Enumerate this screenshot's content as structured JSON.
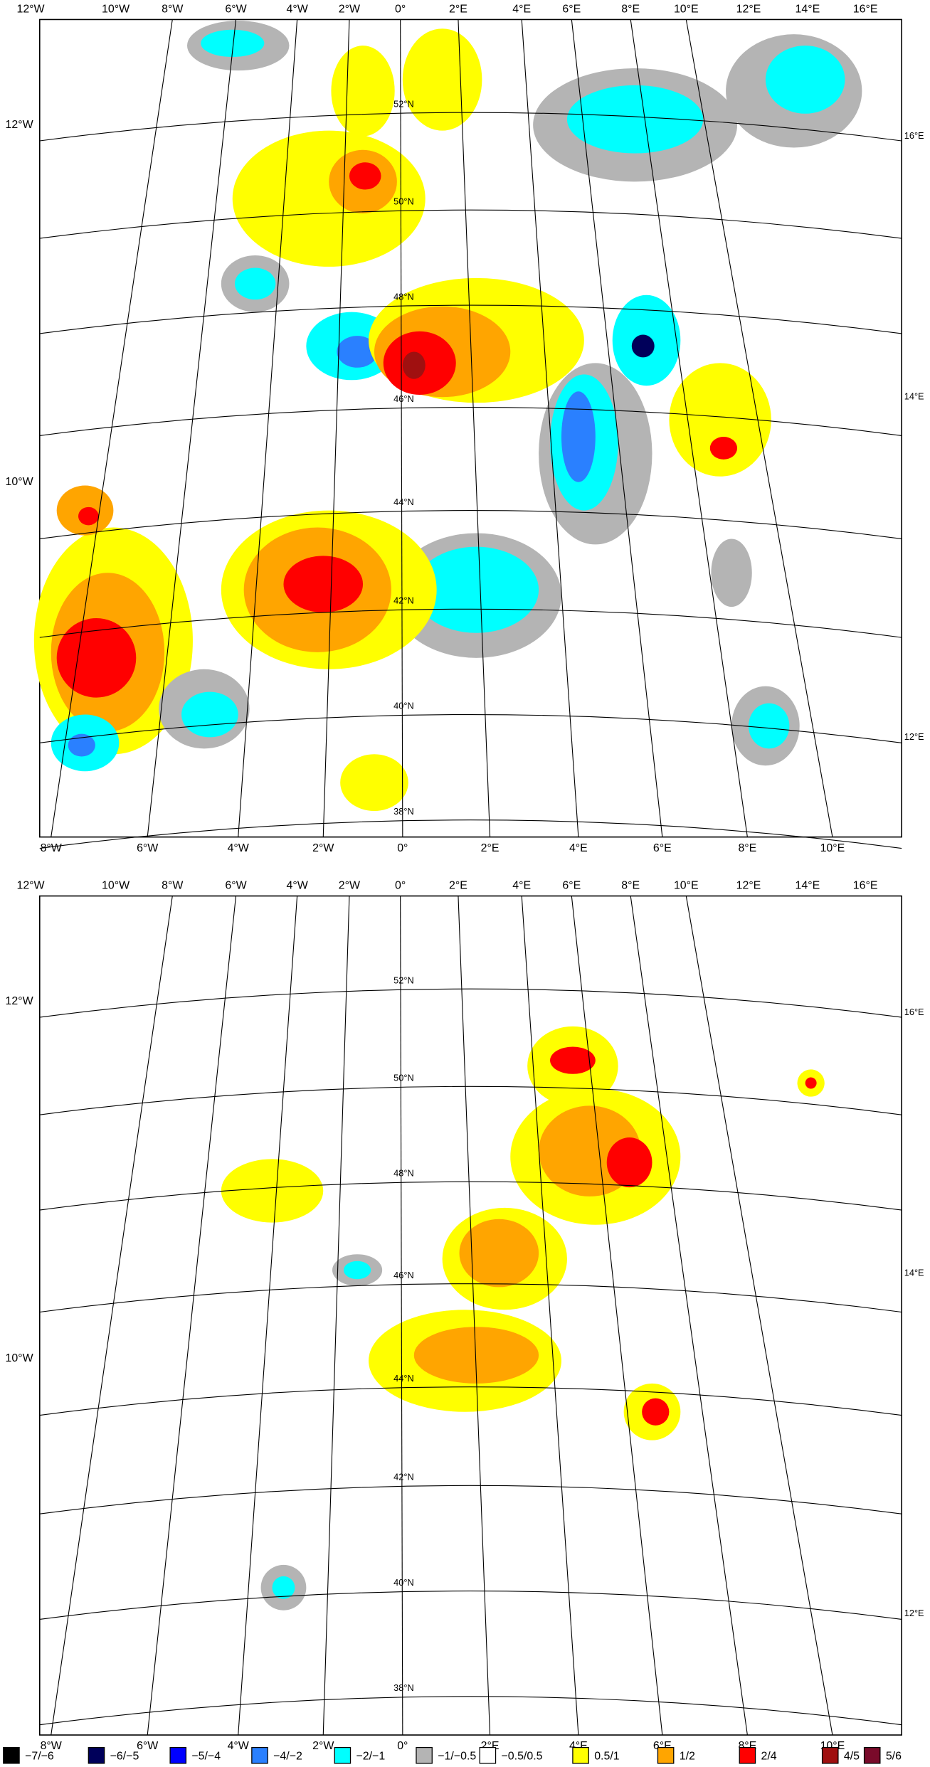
{
  "panels": [
    {
      "top_labels": [
        "12°W",
        "10°W",
        "8°W",
        "6°W",
        "4°W",
        "2°W",
        "0°",
        "2°E",
        "4°E",
        "6°E",
        "8°E",
        "10°E",
        "12°E",
        "14°E",
        "16°E"
      ],
      "bottom_labels": [
        "8°W",
        "6°W",
        "4°W",
        "2°W",
        "0°",
        "2°E",
        "4°E",
        "6°E",
        "8°E",
        "10°E"
      ],
      "left_labels": [
        "12°W",
        "10°W"
      ],
      "right_labels": [
        "16°E",
        "14°E",
        "12°E"
      ],
      "lat_labels": [
        "52°N",
        "50°N",
        "48°N",
        "46°N",
        "44°N",
        "42°N",
        "40°N",
        "38°N"
      ]
    },
    {
      "top_labels": [
        "12°W",
        "10°W",
        "8°W",
        "6°W",
        "4°W",
        "2°W",
        "0°",
        "2°E",
        "4°E",
        "6°E",
        "8°E",
        "10°E",
        "12°E",
        "14°E",
        "16°E"
      ],
      "bottom_labels": [
        "8°W",
        "6°W",
        "4°W",
        "2°W",
        "0°",
        "2°E",
        "4°E",
        "6°E",
        "8°E",
        "10°E"
      ],
      "left_labels": [
        "12°W",
        "10°W"
      ],
      "right_labels": [
        "16°E",
        "14°E",
        "12°E"
      ],
      "lat_labels": [
        "52°N",
        "50°N",
        "48°N",
        "46°N",
        "44°N",
        "42°N",
        "40°N",
        "38°N"
      ]
    }
  ],
  "legend": {
    "items": [
      {
        "label": "−7/−6",
        "color": "#000000"
      },
      {
        "label": "−6/−5",
        "color": "#00005a"
      },
      {
        "label": "−5/−4",
        "color": "#0000ff"
      },
      {
        "label": "−4/−2",
        "color": "#2a80ff"
      },
      {
        "label": "−2/−1",
        "color": "#00ffff"
      },
      {
        "label": "−1/−0.5",
        "color": "#b4b4b4"
      },
      {
        "label": "−0.5/0.5",
        "color": "#ffffff"
      },
      {
        "label": "0.5/1",
        "color": "#ffff00"
      },
      {
        "label": "1/2",
        "color": "#ffa500"
      },
      {
        "label": "2/4",
        "color": "#ff0000"
      },
      {
        "label": "4/5",
        "color": "#a01010"
      },
      {
        "label": "5/6",
        "color": "#7a0a2a"
      }
    ]
  }
}
